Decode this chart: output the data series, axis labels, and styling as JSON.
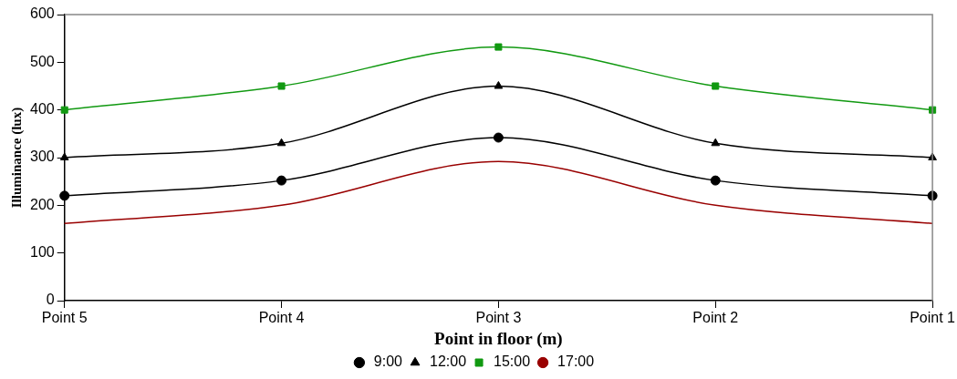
{
  "chart_data": {
    "type": "line",
    "xlabel": "Point in floor (m)",
    "ylabel": "Illuminance (lux)",
    "categories": [
      "Point 5",
      "Point 4",
      "Point 3",
      "Point 2",
      "Point 1"
    ],
    "series": [
      {
        "name": "9:00",
        "color": "#000000",
        "marker": "circle",
        "values": [
          220,
          252,
          342,
          252,
          220
        ]
      },
      {
        "name": "12:00",
        "color": "#000000",
        "marker": "triangle",
        "values": [
          300,
          330,
          450,
          330,
          300
        ]
      },
      {
        "name": "15:00",
        "color": "#119911",
        "marker": "square",
        "values": [
          400,
          450,
          532,
          450,
          400
        ]
      },
      {
        "name": "17:00",
        "color": "#990000",
        "marker": "none",
        "values": [
          162,
          200,
          292,
          200,
          162
        ]
      }
    ],
    "ylim": [
      0,
      600
    ],
    "yticks": [
      0,
      100,
      200,
      300,
      400,
      500,
      600
    ],
    "grid": false,
    "legend": "bottom"
  }
}
